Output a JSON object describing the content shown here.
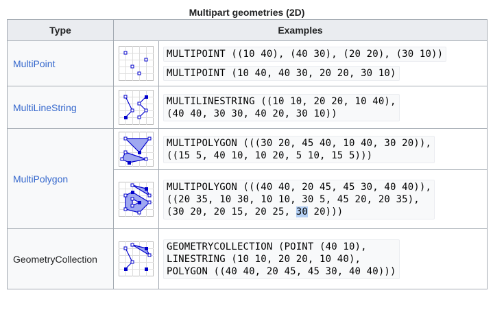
{
  "caption": "Multipart geometries (2D)",
  "header": {
    "type": "Type",
    "examples": "Examples"
  },
  "rows": {
    "multipoint": {
      "type": "MultiPoint",
      "example1": "MULTIPOINT ((10 40), (40 30), (20 20), (30 10))",
      "example2": "MULTIPOINT (10 40, 40 30, 20 20, 30 10)"
    },
    "multilinestring": {
      "type": "MultiLineString",
      "line1": "MULTILINESTRING ((10 10, 20 20, 10 40),",
      "line2": "(40 40, 30 30, 40 20, 30 10))"
    },
    "multipolygon": {
      "type": "MultiPolygon",
      "a_line1": "MULTIPOLYGON (((30 20, 45 40, 10 40, 30 20)),",
      "a_line2": "((15 5, 40 10, 10 20, 5 10, 15 5)))",
      "b_line1": "MULTIPOLYGON (((40 40, 20 45, 45 30, 40 40)),",
      "b_line2": "((20 35, 10 30, 10 10, 30 5, 45 20, 20 35),",
      "b_line3_pre": "(30 20, 20 15, 20 25, ",
      "b_line3_sel": "30",
      "b_line3_post": " 20)))"
    },
    "geometrycollection": {
      "type": "GeometryCollection",
      "line1": "GEOMETRYCOLLECTION (POINT (40 10),",
      "line2": "LINESTRING (10 10, 20 20, 10 40),",
      "line3": "POLYGON ((40 40, 20 45, 45 30, 40 40)))"
    }
  },
  "colors": {
    "link": "#3366cc",
    "header_bg": "#eaecf0",
    "border": "#a2a9b1",
    "geometry": "#0000cc",
    "fill": "#9fa8f0",
    "selection": "#b4d0f5"
  },
  "icons": [
    "multipoint-figure",
    "multilinestring-figure",
    "multipolygon-figure",
    "multipolygon-holes-figure",
    "geometrycollection-figure"
  ]
}
